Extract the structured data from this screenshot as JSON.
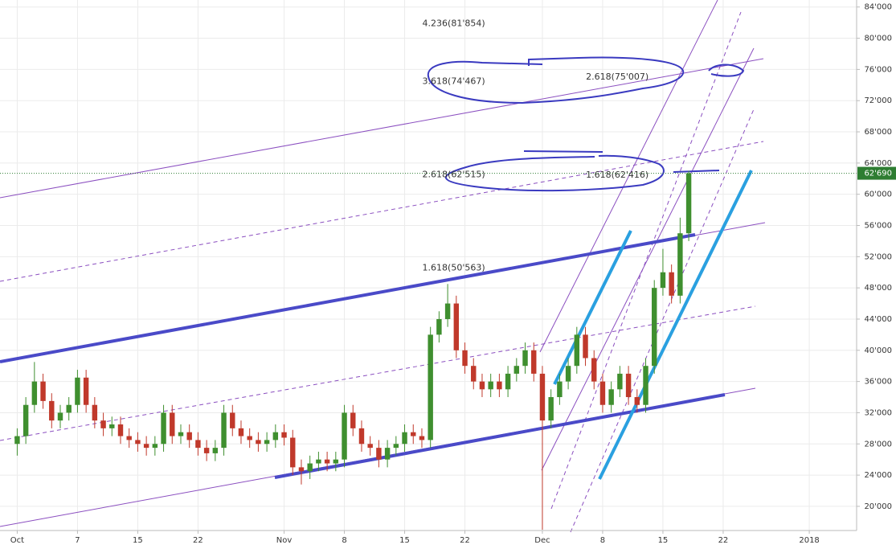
{
  "chart_data": {
    "type": "candlestick",
    "x": [
      0,
      1,
      2,
      3,
      4,
      5,
      6,
      7,
      8,
      9,
      10,
      11,
      12,
      13,
      14,
      15,
      16,
      17,
      18,
      19,
      20,
      21,
      22,
      23,
      24,
      25,
      26,
      27,
      28,
      29,
      30,
      31,
      32,
      33,
      34,
      35,
      36,
      37,
      38,
      39,
      40,
      41,
      42,
      43,
      44,
      45,
      46,
      47,
      48,
      49,
      50,
      51,
      52,
      53,
      54,
      55,
      56,
      57,
      58,
      59,
      60,
      61,
      62,
      63,
      64,
      65,
      66,
      67,
      68,
      69,
      70,
      71,
      72,
      73,
      74,
      75,
      76,
      77,
      78
    ],
    "open": [
      28000,
      29000,
      33000,
      36000,
      33500,
      31000,
      32000,
      33000,
      36500,
      33000,
      31000,
      30000,
      30500,
      29000,
      28500,
      28000,
      27500,
      28000,
      32000,
      29000,
      29500,
      28500,
      27500,
      26800,
      27500,
      32000,
      30000,
      29000,
      28500,
      28000,
      28500,
      29500,
      28800,
      25000,
      24500,
      25500,
      26000,
      25500,
      26000,
      32000,
      30000,
      28000,
      27500,
      26000,
      27500,
      28000,
      29500,
      29000,
      28500,
      42000,
      44000,
      46000,
      40000,
      38000,
      36000,
      35000,
      36000,
      35000,
      37000,
      38000,
      40000,
      37000,
      31000,
      34000,
      36000,
      38000,
      42000,
      39000,
      36000,
      33000,
      35000,
      37000,
      34000,
      33000,
      38000,
      48000,
      50000,
      47000,
      55000
    ],
    "high": [
      30000,
      34000,
      38500,
      37000,
      34500,
      33000,
      34000,
      37500,
      37500,
      34000,
      32000,
      31500,
      31500,
      30000,
      29500,
      29000,
      29000,
      33000,
      33000,
      30500,
      30500,
      29500,
      28500,
      28500,
      33000,
      33000,
      31000,
      30000,
      29500,
      29500,
      30500,
      30500,
      29800,
      26000,
      26500,
      27000,
      27000,
      27000,
      33000,
      33000,
      31000,
      29000,
      28500,
      28500,
      29000,
      30500,
      30500,
      30000,
      43000,
      45000,
      48500,
      47000,
      41000,
      39000,
      37000,
      37000,
      37000,
      38000,
      39000,
      41000,
      41000,
      38000,
      35000,
      37000,
      39000,
      43000,
      43000,
      40000,
      37000,
      36000,
      38000,
      38000,
      35000,
      39000,
      49000,
      53000,
      51000,
      57000,
      63000
    ],
    "low": [
      26500,
      28000,
      32000,
      32500,
      30000,
      30000,
      31000,
      32000,
      32000,
      30000,
      29000,
      29000,
      28000,
      27500,
      27000,
      26500,
      26500,
      27000,
      28000,
      28000,
      27500,
      26500,
      25800,
      25800,
      26500,
      29000,
      28000,
      27500,
      27000,
      27000,
      27500,
      27800,
      24000,
      22800,
      23500,
      24500,
      24500,
      24500,
      25000,
      29000,
      27000,
      26500,
      25000,
      25000,
      26500,
      27000,
      28000,
      27500,
      27500,
      41000,
      43000,
      39000,
      37000,
      35000,
      34000,
      34000,
      34000,
      34000,
      36000,
      37000,
      36000,
      17000,
      30000,
      33000,
      35000,
      37000,
      38000,
      35000,
      32000,
      32000,
      34000,
      33000,
      32000,
      32000,
      37000,
      47000,
      46000,
      46000,
      54000
    ],
    "close": [
      29000,
      33000,
      36000,
      33500,
      31000,
      32000,
      33000,
      36500,
      33000,
      31000,
      30000,
      30500,
      29000,
      28500,
      28000,
      27500,
      28000,
      32000,
      29000,
      29500,
      28500,
      27500,
      26800,
      27500,
      32000,
      30000,
      29000,
      28500,
      28000,
      28500,
      29500,
      28800,
      25000,
      24500,
      25500,
      26000,
      25500,
      26000,
      32000,
      30000,
      28000,
      27500,
      26000,
      27500,
      28000,
      29500,
      29000,
      28500,
      42000,
      44000,
      46000,
      40000,
      38000,
      36000,
      35000,
      36000,
      35000,
      37000,
      38000,
      40000,
      37000,
      31000,
      34000,
      36000,
      38000,
      42000,
      39000,
      36000,
      33000,
      35000,
      37000,
      34000,
      33000,
      38000,
      48000,
      50000,
      47000,
      55000,
      62690
    ],
    "up_color": "#3f8f2f",
    "down_color": "#c0392b",
    "xlim": [
      -2,
      97.5
    ],
    "xticks": [
      {
        "value": 0,
        "label": "Oct"
      },
      7,
      {
        "value": 14,
        "label": "15"
      },
      {
        "value": 21,
        "label": "22"
      },
      {
        "value": 31,
        "label": "Nov"
      },
      {
        "value": 38,
        "label": "8"
      },
      {
        "value": 45,
        "label": "15"
      },
      {
        "value": 52,
        "label": "22"
      },
      {
        "value": 61,
        "label": "Dec"
      },
      {
        "value": 68,
        "label": "8"
      },
      {
        "value": 75,
        "label": "15"
      },
      {
        "value": 82,
        "label": "22"
      },
      {
        "value": 92,
        "label": "2018"
      }
    ],
    "ylim": [
      16900,
      84900
    ],
    "yticks": [
      {
        "value": 20000,
        "label": "20'000"
      },
      {
        "value": 24000,
        "label": "24'000"
      },
      {
        "value": 28000,
        "label": "28'000"
      },
      {
        "value": 32000,
        "label": "32'000"
      },
      {
        "value": 36000,
        "label": "36'000"
      },
      {
        "value": 40000,
        "label": "40'000"
      },
      {
        "value": 44000,
        "label": "44'000"
      },
      {
        "value": 48000,
        "label": "48'000"
      },
      {
        "value": 52000,
        "label": "52'000"
      },
      {
        "value": 56000,
        "label": "56'000"
      },
      {
        "value": 60000,
        "label": "60'000"
      },
      {
        "value": 64000,
        "label": "64'000"
      },
      {
        "value": 68000,
        "label": "68'000"
      },
      {
        "value": 72000,
        "label": "72'000"
      },
      {
        "value": 76000,
        "label": "76'000"
      },
      {
        "value": 80000,
        "label": "80'000"
      },
      {
        "value": 84000,
        "label": "84'000"
      }
    ],
    "grid": true,
    "last_price": {
      "value": 62690,
      "label": "62'690"
    },
    "annotations": [
      {
        "label": "4.236(81'854)",
        "value": 81854,
        "x": 50.7
      },
      {
        "label": "3.618(74'467)",
        "value": 74467,
        "x": 50.7
      },
      {
        "label": "2.618(75'007)",
        "value": 75007,
        "x": 69.7
      },
      {
        "label": "2.618(62'515)",
        "value": 62515,
        "x": 50.7
      },
      {
        "label": "1.618(62'416)",
        "value": 62416,
        "x": 69.7
      },
      {
        "label": "1.618(50'563)",
        "value": 50563,
        "x": 50.7
      }
    ]
  }
}
